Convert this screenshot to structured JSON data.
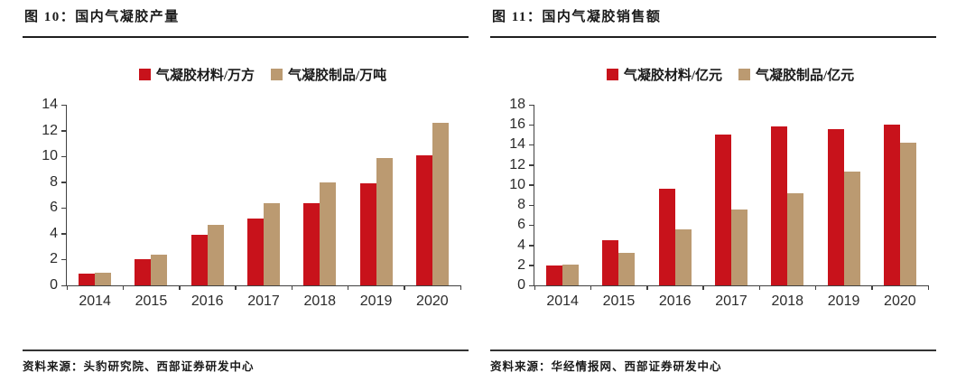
{
  "colors": {
    "materials_red": "#C8121B",
    "products_tan": "#BB9A71",
    "axis": "#404040",
    "rule": "#1f1f1f",
    "text": "#1a1a1a"
  },
  "panels": [
    {
      "title": "图 10：国内气凝胶产量",
      "source": "资料来源：头豹研究院、西部证券研发中心"
    },
    {
      "title": "图 11：国内气凝胶销售额",
      "source": "资料来源：华经情报网、西部证券研发中心"
    }
  ],
  "chart_data": [
    {
      "type": "bar",
      "title": "图 10：国内气凝胶产量",
      "categories": [
        "2014",
        "2015",
        "2016",
        "2017",
        "2018",
        "2019",
        "2020"
      ],
      "series": [
        {
          "name": "气凝胶材料/万方",
          "color": "#C8121B",
          "values": [
            0.9,
            2.0,
            3.9,
            5.2,
            6.4,
            7.9,
            10.1
          ]
        },
        {
          "name": "气凝胶制品/万吨",
          "color": "#BB9A71",
          "values": [
            1.0,
            2.4,
            4.7,
            6.4,
            8.0,
            9.9,
            12.6
          ]
        }
      ],
      "xlabel": "",
      "ylabel": "",
      "ylim": [
        0,
        14
      ],
      "ytick_step": 2,
      "grid": false,
      "legend_position": "top"
    },
    {
      "type": "bar",
      "title": "图 11：国内气凝胶销售额",
      "categories": [
        "2014",
        "2015",
        "2016",
        "2017",
        "2018",
        "2019",
        "2020"
      ],
      "series": [
        {
          "name": "气凝胶材料/亿元",
          "color": "#C8121B",
          "values": [
            2.0,
            4.5,
            9.6,
            15.0,
            15.8,
            15.6,
            16.0
          ]
        },
        {
          "name": "气凝胶制品/亿元",
          "color": "#BB9A71",
          "values": [
            2.1,
            3.2,
            5.6,
            7.6,
            9.2,
            11.3,
            14.2
          ]
        }
      ],
      "xlabel": "",
      "ylabel": "",
      "ylim": [
        0,
        18
      ],
      "ytick_step": 2,
      "grid": false,
      "legend_position": "top"
    }
  ]
}
